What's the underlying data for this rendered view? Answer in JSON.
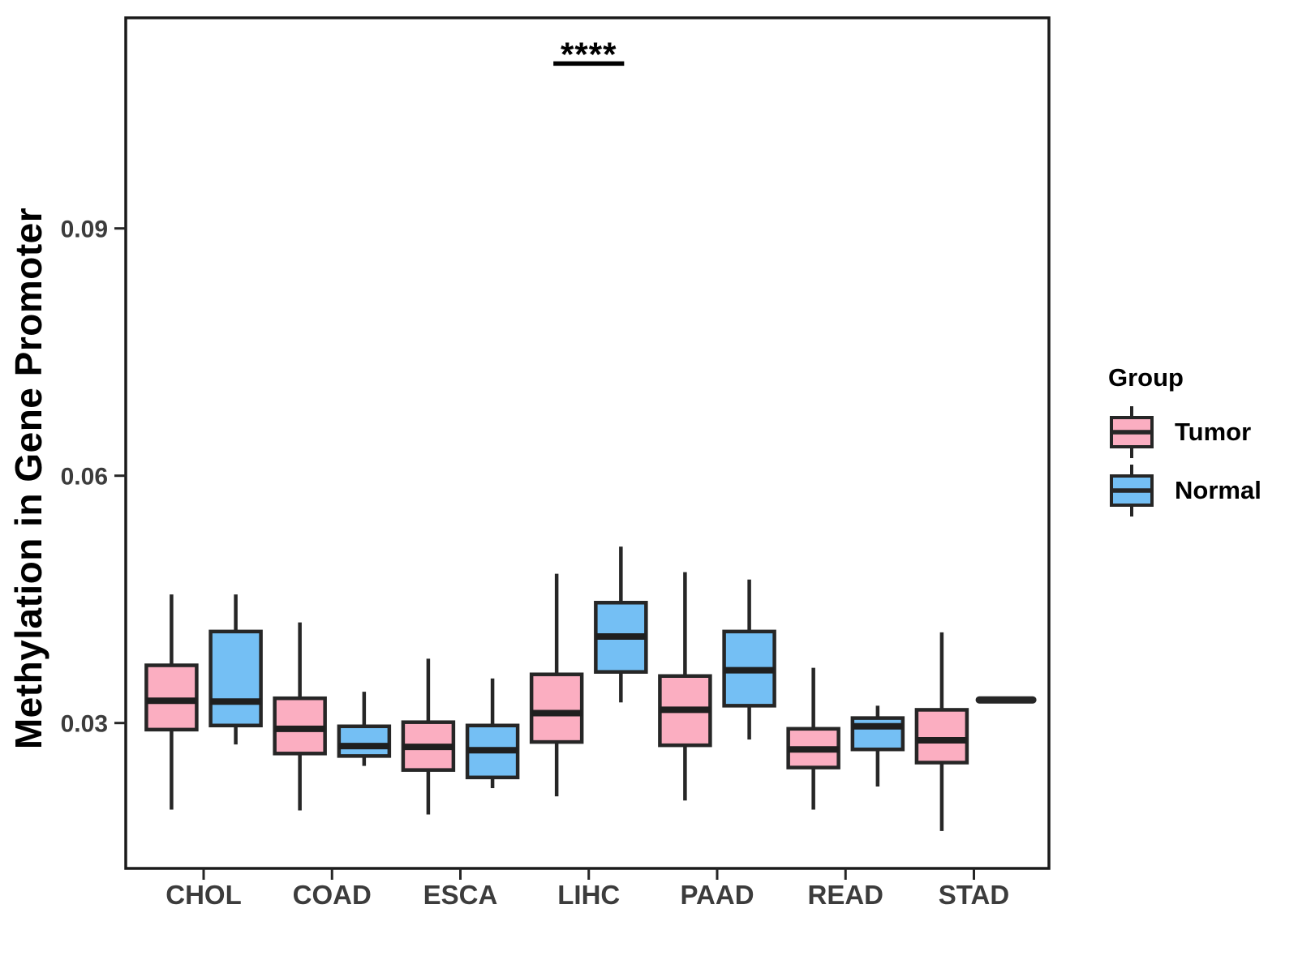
{
  "chart_data": {
    "type": "boxplot",
    "title": "",
    "xlabel": "",
    "ylabel": "Methylation in Gene Promoter",
    "categories": [
      "CHOL",
      "COAD",
      "ESCA",
      "LIHC",
      "PAAD",
      "READ",
      "STAD"
    ],
    "ytick_labels": [
      "0.03",
      "0.06",
      "0.09"
    ],
    "ytick_values": [
      0.03,
      0.06,
      0.09
    ],
    "ylim": [
      0.0122,
      0.1156
    ],
    "grid": "off",
    "legend_title": "Group",
    "legend_position": "right",
    "series": [
      {
        "name": "Tumor",
        "fill_color": "#FBAEC1",
        "boxes": [
          {
            "category": "CHOL",
            "min": 0.0195,
            "q1": 0.0292,
            "median": 0.0327,
            "q3": 0.037,
            "max": 0.0456
          },
          {
            "category": "COAD",
            "min": 0.0194,
            "q1": 0.0263,
            "median": 0.0293,
            "q3": 0.033,
            "max": 0.0422
          },
          {
            "category": "ESCA",
            "min": 0.0189,
            "q1": 0.0243,
            "median": 0.0271,
            "q3": 0.0301,
            "max": 0.0378
          },
          {
            "category": "LIHC",
            "min": 0.0211,
            "q1": 0.0277,
            "median": 0.0312,
            "q3": 0.0359,
            "max": 0.0481
          },
          {
            "category": "PAAD",
            "min": 0.0206,
            "q1": 0.0273,
            "median": 0.0316,
            "q3": 0.0357,
            "max": 0.0483
          },
          {
            "category": "READ",
            "min": 0.0195,
            "q1": 0.0246,
            "median": 0.0268,
            "q3": 0.0293,
            "max": 0.0367
          },
          {
            "category": "STAD",
            "min": 0.0169,
            "q1": 0.0252,
            "median": 0.0279,
            "q3": 0.0316,
            "max": 0.041
          }
        ]
      },
      {
        "name": "Normal",
        "fill_color": "#74BFF4",
        "boxes": [
          {
            "category": "CHOL",
            "min": 0.0274,
            "q1": 0.0297,
            "median": 0.0326,
            "q3": 0.0411,
            "max": 0.0456
          },
          {
            "category": "COAD",
            "min": 0.0248,
            "q1": 0.026,
            "median": 0.0272,
            "q3": 0.0296,
            "max": 0.0338
          },
          {
            "category": "ESCA",
            "min": 0.0221,
            "q1": 0.0234,
            "median": 0.0267,
            "q3": 0.0297,
            "max": 0.0354
          },
          {
            "category": "LIHC",
            "min": 0.0325,
            "q1": 0.0362,
            "median": 0.0405,
            "q3": 0.0446,
            "max": 0.0514
          },
          {
            "category": "PAAD",
            "min": 0.028,
            "q1": 0.0321,
            "median": 0.0364,
            "q3": 0.0411,
            "max": 0.0474
          },
          {
            "category": "READ",
            "min": 0.0223,
            "q1": 0.0268,
            "median": 0.0296,
            "q3": 0.0306,
            "max": 0.0321
          },
          {
            "category": "STAD",
            "min": 0.0328,
            "q1": 0.0328,
            "median": 0.0328,
            "q3": 0.0328,
            "max": 0.0328
          }
        ]
      }
    ],
    "annotations": [
      {
        "text": "****",
        "category": "LIHC",
        "line_y": 0.11
      }
    ]
  },
  "colors": {
    "tumor_fill": "#FBAEC1",
    "normal_fill": "#74BFF4",
    "box_stroke": "#262626",
    "median_stroke": "#1F1F1F",
    "axis_text": "#3C3C3C",
    "panel_border": "#1A1A1A",
    "annotation": "#000000",
    "background": "#FFFFFF"
  }
}
